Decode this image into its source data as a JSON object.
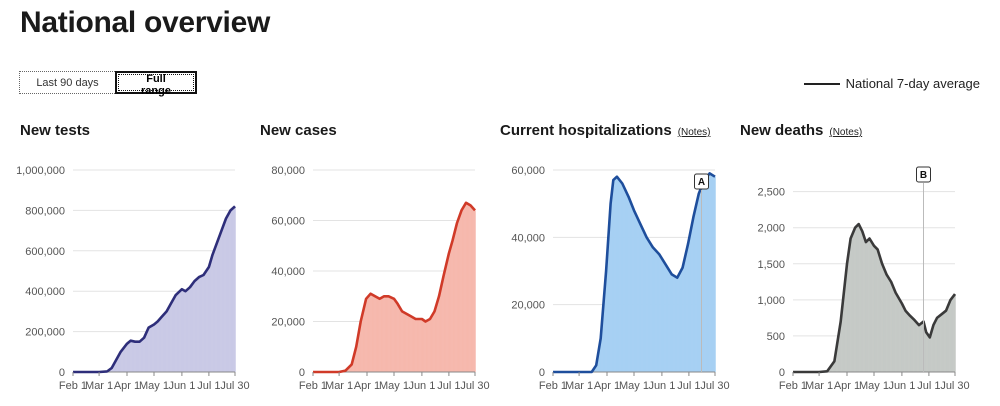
{
  "page": {
    "title": "National overview",
    "toggle": {
      "options": [
        "Last 90 days",
        "Full range"
      ],
      "active": "Full range"
    },
    "legend_label": "National 7-day average",
    "notes_label": "(Notes)"
  },
  "colors": {
    "line": "#222222"
  },
  "chart_data": [
    {
      "id": "tests",
      "type": "bar",
      "title": "New tests",
      "has_notes": false,
      "x_ticks": [
        "Feb 1",
        "Mar 1",
        "Apr 1",
        "May 1",
        "Jun 1",
        "Jul 1",
        "Jul 30"
      ],
      "ylim": [
        0,
        1000000
      ],
      "y_ticks": [
        0,
        200000,
        400000,
        600000,
        800000,
        1000000
      ],
      "y_tick_labels": [
        "0",
        "200,000",
        "400,000",
        "600,000",
        "800,000",
        "1,000,000"
      ],
      "bar_color": "#c9c9e6",
      "line_color": "#2e2e7a",
      "series": [
        {
          "name": "National 7-day average",
          "points": [
            [
              "2020-02-01",
              0
            ],
            [
              "2020-03-01",
              0
            ],
            [
              "2020-03-10",
              3000
            ],
            [
              "2020-03-15",
              20000
            ],
            [
              "2020-03-20",
              60000
            ],
            [
              "2020-03-25",
              100000
            ],
            [
              "2020-04-01",
              140000
            ],
            [
              "2020-04-05",
              155000
            ],
            [
              "2020-04-10",
              150000
            ],
            [
              "2020-04-15",
              150000
            ],
            [
              "2020-04-20",
              170000
            ],
            [
              "2020-04-25",
              220000
            ],
            [
              "2020-05-01",
              235000
            ],
            [
              "2020-05-05",
              250000
            ],
            [
              "2020-05-10",
              275000
            ],
            [
              "2020-05-15",
              300000
            ],
            [
              "2020-05-20",
              340000
            ],
            [
              "2020-05-25",
              380000
            ],
            [
              "2020-06-01",
              410000
            ],
            [
              "2020-06-05",
              400000
            ],
            [
              "2020-06-10",
              420000
            ],
            [
              "2020-06-15",
              450000
            ],
            [
              "2020-06-20",
              470000
            ],
            [
              "2020-06-25",
              480000
            ],
            [
              "2020-07-01",
              520000
            ],
            [
              "2020-07-05",
              580000
            ],
            [
              "2020-07-10",
              640000
            ],
            [
              "2020-07-15",
              700000
            ],
            [
              "2020-07-20",
              760000
            ],
            [
              "2020-07-25",
              800000
            ],
            [
              "2020-07-30",
              820000
            ]
          ]
        }
      ]
    },
    {
      "id": "cases",
      "type": "bar",
      "title": "New cases",
      "has_notes": false,
      "x_ticks": [
        "Feb 1",
        "Mar 1",
        "Apr 1",
        "May 1",
        "Jun 1",
        "Jul 1",
        "Jul 30"
      ],
      "ylim": [
        0,
        80000
      ],
      "y_ticks": [
        0,
        20000,
        40000,
        60000,
        80000
      ],
      "y_tick_labels": [
        "0",
        "20,000",
        "40,000",
        "60,000",
        "80,000"
      ],
      "bar_color": "#f6b8ad",
      "line_color": "#d03a28",
      "series": [
        {
          "name": "National 7-day average",
          "points": [
            [
              "2020-02-01",
              0
            ],
            [
              "2020-03-01",
              0
            ],
            [
              "2020-03-08",
              500
            ],
            [
              "2020-03-15",
              3000
            ],
            [
              "2020-03-20",
              10000
            ],
            [
              "2020-03-25",
              20000
            ],
            [
              "2020-03-31",
              29000
            ],
            [
              "2020-04-05",
              31000
            ],
            [
              "2020-04-10",
              30000
            ],
            [
              "2020-04-15",
              29000
            ],
            [
              "2020-04-20",
              30000
            ],
            [
              "2020-04-25",
              30000
            ],
            [
              "2020-05-01",
              29000
            ],
            [
              "2020-05-05",
              27000
            ],
            [
              "2020-05-10",
              24000
            ],
            [
              "2020-05-15",
              23000
            ],
            [
              "2020-05-20",
              22000
            ],
            [
              "2020-05-25",
              21000
            ],
            [
              "2020-06-01",
              21000
            ],
            [
              "2020-06-05",
              20000
            ],
            [
              "2020-06-10",
              21000
            ],
            [
              "2020-06-15",
              24000
            ],
            [
              "2020-06-20",
              30000
            ],
            [
              "2020-06-25",
              38000
            ],
            [
              "2020-07-01",
              47000
            ],
            [
              "2020-07-05",
              52000
            ],
            [
              "2020-07-10",
              59000
            ],
            [
              "2020-07-15",
              64000
            ],
            [
              "2020-07-20",
              67000
            ],
            [
              "2020-07-25",
              66000
            ],
            [
              "2020-07-30",
              64000
            ]
          ]
        }
      ]
    },
    {
      "id": "hospitalizations",
      "type": "bar",
      "title": "Current hospitalizations",
      "has_notes": true,
      "x_ticks": [
        "Feb 1",
        "Mar 1",
        "Apr 1",
        "May 1",
        "Jun 1",
        "Jul 1",
        "Jul 30"
      ],
      "ylim": [
        0,
        60000
      ],
      "y_ticks": [
        0,
        20000,
        40000,
        60000
      ],
      "y_tick_labels": [
        "0",
        "20,000",
        "40,000",
        "60,000"
      ],
      "bar_color": "#a6d0f3",
      "line_color": "#1e4e9c",
      "annotation": {
        "label": "A",
        "date": "2020-07-15"
      },
      "series": [
        {
          "name": "National 7-day average",
          "points": [
            [
              "2020-02-01",
              0
            ],
            [
              "2020-03-01",
              0
            ],
            [
              "2020-03-15",
              0
            ],
            [
              "2020-03-20",
              2000
            ],
            [
              "2020-03-25",
              10000
            ],
            [
              "2020-03-31",
              30000
            ],
            [
              "2020-04-05",
              50000
            ],
            [
              "2020-04-08",
              57000
            ],
            [
              "2020-04-12",
              58000
            ],
            [
              "2020-04-18",
              56000
            ],
            [
              "2020-04-25",
              52000
            ],
            [
              "2020-05-01",
              48000
            ],
            [
              "2020-05-08",
              44000
            ],
            [
              "2020-05-15",
              40000
            ],
            [
              "2020-05-22",
              37000
            ],
            [
              "2020-05-29",
              35000
            ],
            [
              "2020-06-05",
              32000
            ],
            [
              "2020-06-12",
              29000
            ],
            [
              "2020-06-18",
              28000
            ],
            [
              "2020-06-24",
              31000
            ],
            [
              "2020-06-30",
              38000
            ],
            [
              "2020-07-06",
              46000
            ],
            [
              "2020-07-12",
              53000
            ],
            [
              "2020-07-18",
              57000
            ],
            [
              "2020-07-24",
              59000
            ],
            [
              "2020-07-30",
              58000
            ]
          ]
        }
      ]
    },
    {
      "id": "deaths",
      "type": "bar",
      "title": "New deaths",
      "has_notes": true,
      "x_ticks": [
        "Feb 1",
        "Mar 1",
        "Apr 1",
        "May 1",
        "Jun 1",
        "Jul 1",
        "Jul 30"
      ],
      "ylim": [
        0,
        2800
      ],
      "y_ticks": [
        0,
        500,
        1000,
        1500,
        2000,
        2500
      ],
      "y_tick_labels": [
        "0",
        "500",
        "1,000",
        "1,500",
        "2,000",
        "2,500"
      ],
      "bar_color": "#c5c9c6",
      "line_color": "#3a3a3a",
      "annotation": {
        "label": "B",
        "date": "2020-06-25"
      },
      "series": [
        {
          "name": "National 7-day average",
          "points": [
            [
              "2020-02-01",
              0
            ],
            [
              "2020-03-01",
              0
            ],
            [
              "2020-03-10",
              10
            ],
            [
              "2020-03-18",
              150
            ],
            [
              "2020-03-25",
              700
            ],
            [
              "2020-04-01",
              1500
            ],
            [
              "2020-04-05",
              1850
            ],
            [
              "2020-04-10",
              2000
            ],
            [
              "2020-04-14",
              2050
            ],
            [
              "2020-04-18",
              1950
            ],
            [
              "2020-04-22",
              1800
            ],
            [
              "2020-04-26",
              1850
            ],
            [
              "2020-05-01",
              1750
            ],
            [
              "2020-05-05",
              1700
            ],
            [
              "2020-05-10",
              1500
            ],
            [
              "2020-05-15",
              1350
            ],
            [
              "2020-05-20",
              1250
            ],
            [
              "2020-05-25",
              1100
            ],
            [
              "2020-06-01",
              950
            ],
            [
              "2020-06-05",
              850
            ],
            [
              "2020-06-10",
              780
            ],
            [
              "2020-06-15",
              720
            ],
            [
              "2020-06-20",
              650
            ],
            [
              "2020-06-25",
              700
            ],
            [
              "2020-06-28",
              550
            ],
            [
              "2020-07-02",
              480
            ],
            [
              "2020-07-06",
              650
            ],
            [
              "2020-07-10",
              750
            ],
            [
              "2020-07-15",
              800
            ],
            [
              "2020-07-20",
              850
            ],
            [
              "2020-07-25",
              1000
            ],
            [
              "2020-07-30",
              1080
            ]
          ]
        }
      ]
    }
  ]
}
